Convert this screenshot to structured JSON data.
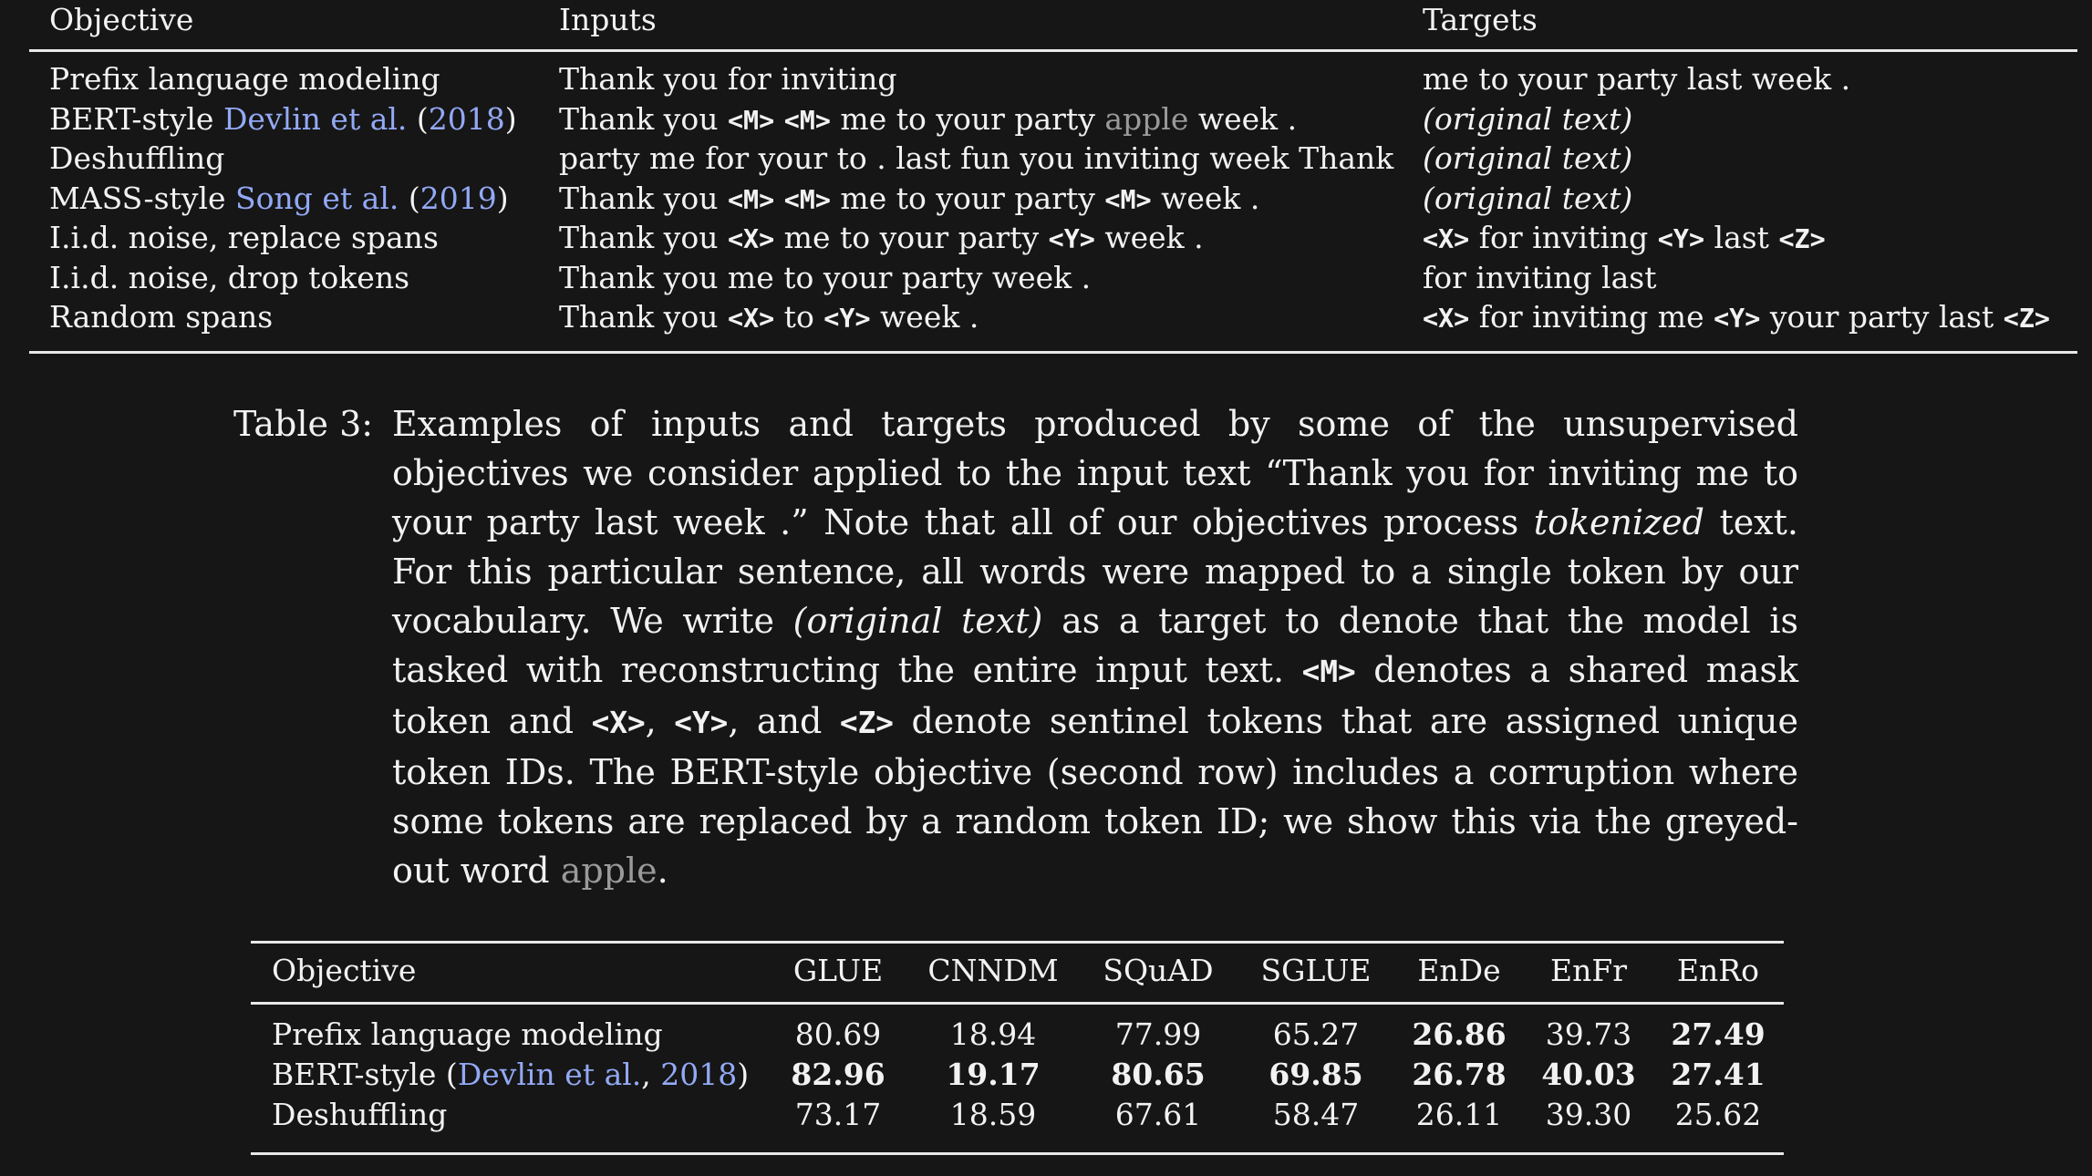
{
  "table1": {
    "headers": {
      "objective": "Objective",
      "inputs": "Inputs",
      "targets": "Targets"
    },
    "rows": [
      {
        "objective": [
          "Prefix language modeling"
        ],
        "inputs": "Thank you for inviting",
        "targets": "me to your party last week ."
      },
      {
        "objective": [
          "BERT-style ",
          "Devlin et al.",
          " (",
          "2018",
          ")"
        ],
        "inputs_parts": [
          "Thank you ",
          "<M>",
          " ",
          "<M>",
          " me to your party ",
          "apple",
          " week ."
        ],
        "targets": "(original text)"
      },
      {
        "objective": [
          "Deshuffling"
        ],
        "inputs": "party me for your to . last fun you inviting week Thank",
        "targets": "(original text)"
      },
      {
        "objective": [
          "MASS-style ",
          "Song et al.",
          " (",
          "2019",
          ")"
        ],
        "inputs_parts": [
          "Thank you ",
          "<M>",
          " ",
          "<M>",
          " me to your party ",
          "<M>",
          " week ."
        ],
        "targets": "(original text)"
      },
      {
        "objective": [
          "I.i.d. noise, replace spans"
        ],
        "inputs_parts": [
          "Thank you ",
          "<X>",
          " me to your party ",
          "<Y>",
          " week ."
        ],
        "targets_parts": [
          "<X>",
          " for inviting ",
          "<Y>",
          " last ",
          "<Z>"
        ]
      },
      {
        "objective": [
          "I.i.d. noise, drop tokens"
        ],
        "inputs": "Thank you me to your party week .",
        "targets": "for inviting last"
      },
      {
        "objective": [
          "Random spans"
        ],
        "inputs_parts": [
          "Thank you ",
          "<X>",
          " to ",
          "<Y>",
          " week ."
        ],
        "targets_parts": [
          "<X>",
          " for inviting me ",
          "<Y>",
          " your party last ",
          "<Z>"
        ]
      }
    ]
  },
  "caption": {
    "label": "Table 3:",
    "parts": [
      "Examples of inputs and targets produced by some of the unsupervised objectives we consider applied to the input text “Thank you for inviting me to your party last week .” Note that all of our objectives process ",
      "tokenized",
      " text. For this particular sentence, all words were mapped to a single token by our vocabulary. We write ",
      "(original text)",
      " as a target to denote that the model is tasked with reconstructing the entire input text. ",
      "<M>",
      " denotes a shared mask token and ",
      "<X>",
      ", ",
      "<Y>",
      ", and ",
      "<Z>",
      " denote sentinel tokens that are assigned unique token IDs. The BERT-style objective (second row) includes a corruption where some tokens are replaced by a random token ID; we show this via the greyed-out word ",
      "apple",
      "."
    ]
  },
  "table2": {
    "headers": [
      "Objective",
      "GLUE",
      "CNNDM",
      "SQuAD",
      "SGLUE",
      "EnDe",
      "EnFr",
      "EnRo"
    ],
    "rows": [
      {
        "objective": [
          "Prefix language modeling"
        ],
        "values": [
          "80.69",
          "18.94",
          "77.99",
          "65.27",
          "26.86",
          "39.73",
          "27.49"
        ],
        "bold": [
          false,
          false,
          false,
          false,
          true,
          false,
          true
        ]
      },
      {
        "objective": [
          "BERT-style (",
          "Devlin et al.",
          ", ",
          "2018",
          ")"
        ],
        "values": [
          "82.96",
          "19.17",
          "80.65",
          "69.85",
          "26.78",
          "40.03",
          "27.41"
        ],
        "bold": [
          true,
          true,
          true,
          true,
          true,
          true,
          true
        ]
      },
      {
        "objective": [
          "Deshuffling"
        ],
        "values": [
          "73.17",
          "18.59",
          "67.61",
          "58.47",
          "26.11",
          "39.30",
          "25.62"
        ],
        "bold": [
          false,
          false,
          false,
          false,
          false,
          false,
          false
        ]
      }
    ]
  },
  "colors": {
    "background": "#161616",
    "text": "#f2f2f2",
    "citation_link": "#93a9f5",
    "greyed_word": "#9a9a9a"
  }
}
